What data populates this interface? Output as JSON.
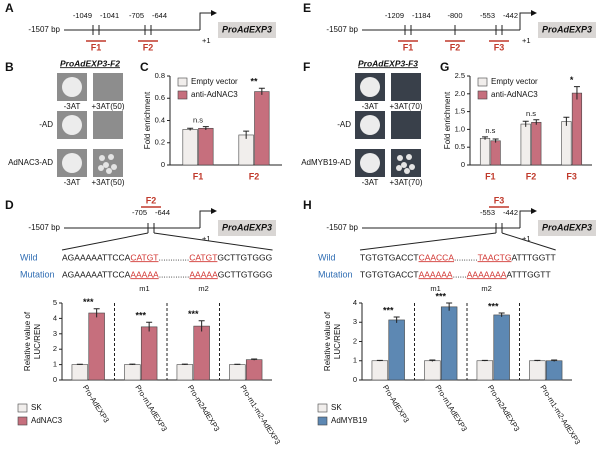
{
  "panels": {
    "A": {
      "label": "A",
      "start": "-1507 bp",
      "sites": [
        "-1049",
        "-1041",
        "-705",
        "-644"
      ],
      "fragments": [
        "F1",
        "F2"
      ],
      "tss": "+1",
      "promoter": "ProAdEXP3"
    },
    "E": {
      "label": "E",
      "start": "-1507 bp",
      "sites": [
        "-1209",
        "-1184",
        "-800",
        "-553",
        "-442"
      ],
      "fragments": [
        "F1",
        "F2",
        "F3"
      ],
      "tss": "+1",
      "promoter": "ProAdEXP3"
    },
    "B": {
      "label": "B",
      "title": "ProAdEXP3-F2",
      "rows": [
        "-AD",
        "AdNAC3-AD"
      ],
      "columns": [
        "-3AT",
        "+3AT(50)"
      ]
    },
    "F": {
      "label": "F",
      "title": "ProAdEXP3-F3",
      "rows": [
        "-AD",
        "AdMYB19-AD"
      ],
      "columns": [
        "-3AT",
        "+3AT(70)"
      ]
    },
    "D": {
      "label": "D",
      "start": "-1507 bp",
      "sites": [
        "-705",
        "-644"
      ],
      "fragments": [
        "F2"
      ],
      "tss": "+1",
      "promoter": "ProAdEXP3",
      "wild_label": "Wild",
      "wild": [
        "AGAAAAATTCCA",
        "CATGT",
        ".............",
        "CATGT",
        "GCTTGTGGG"
      ],
      "mutation_label": "Mutation",
      "mutation": [
        "AGAAAAATTCCA",
        "AAAAA",
        ".............",
        "AAAAA",
        "GCTTGTGGG"
      ],
      "motifs": [
        "m1",
        "m2"
      ]
    },
    "H": {
      "label": "H",
      "start": "-1507 bp",
      "sites": [
        "-553",
        "-442"
      ],
      "fragments": [
        "F3"
      ],
      "tss": "+1",
      "promoter": "ProAdEXP3",
      "wild_label": "Wild",
      "wild": [
        "TGTGTGACCT",
        "CAACCA",
        "..........",
        "TAACTG",
        "ATTTGGTT"
      ],
      "mutation_label": "Mutation",
      "mutation": [
        "TGTGTGACCT",
        "AAAAAA",
        "......",
        "AAAAAAA",
        "ATTTGGTT"
      ],
      "motifs": [
        "m1",
        "m2"
      ]
    }
  },
  "chart_data": [
    {
      "panel": "C",
      "type": "bar",
      "ylabel": [
        "Fold enrichment"
      ],
      "categories": [
        "F1",
        "F2"
      ],
      "series": [
        {
          "name": "Empty vector",
          "color": "#f1eeec",
          "values": [
            0.32,
            0.27
          ],
          "errors": [
            0.01,
            0.035
          ]
        },
        {
          "name": "anti-AdNAC3",
          "color": "#c66f7d",
          "values": [
            0.33,
            0.66
          ],
          "errors": [
            0.015,
            0.03
          ]
        }
      ],
      "annotations": [
        "n.s",
        "**"
      ],
      "ylim": [
        0,
        0.8
      ],
      "yticks": [
        0,
        0.2,
        0.4,
        0.6,
        0.8
      ],
      "legend": "upper left"
    },
    {
      "panel": "G",
      "type": "bar",
      "ylabel": [
        "Fold enrichment"
      ],
      "categories": [
        "F1",
        "F2",
        "F3"
      ],
      "series": [
        {
          "name": "Empty vector",
          "color": "#f1eeec",
          "values": [
            0.75,
            1.15,
            1.22
          ],
          "errors": [
            0.04,
            0.08,
            0.12
          ]
        },
        {
          "name": "anti-AdNAC3",
          "color": "#c66f7d",
          "values": [
            0.68,
            1.2,
            2.02
          ],
          "errors": [
            0.05,
            0.07,
            0.18
          ]
        }
      ],
      "annotations": [
        "n.s",
        "n.s",
        "*"
      ],
      "ylim": [
        0,
        2.5
      ],
      "yticks": [
        0,
        0.5,
        {
          "value": 1,
          "label": "1.0"
        },
        1.5,
        {
          "value": 2,
          "label": "2.0"
        },
        2.5
      ],
      "legend": "upper left"
    },
    {
      "type": "bar",
      "ylabel": [
        "Relative value of",
        "LUC/REN"
      ],
      "categories": [
        "Pro-AdEXP3",
        "Pro-m1AdEXP3",
        "Pro-m2AdEXP3",
        "Pro-m1-m2-AdEXP3"
      ],
      "series": [
        {
          "name": "SK",
          "color": "#f1eeec",
          "values": [
            1,
            1,
            1,
            1
          ],
          "errors": [
            0.02,
            0.03,
            0.03,
            0.02
          ]
        },
        {
          "name": "AdNAC3",
          "color": "#c66f7d",
          "values": [
            4.35,
            3.45,
            3.5,
            1.32
          ],
          "errors": [
            0.28,
            0.3,
            0.35,
            0.04
          ]
        }
      ],
      "annotations": [
        "***",
        "***",
        "***",
        null
      ],
      "ylim": [
        0,
        5
      ],
      "yticks": [
        0,
        1,
        2,
        3,
        4,
        5
      ],
      "legend": "below",
      "separators": true
    },
    {
      "type": "bar",
      "ylabel": [
        "Relative value of",
        "LUC/REN"
      ],
      "categories": [
        "Pro-AdEXP3",
        "Pro-m1AdEXP3",
        "Pro-m2AdEXP3",
        "Pro-m1-m2-AdEXP3"
      ],
      "series": [
        {
          "name": "SK",
          "color": "#f1eeec",
          "values": [
            1,
            1,
            1,
            1
          ],
          "errors": [
            0.02,
            0.04,
            0.02,
            0.02
          ]
        },
        {
          "name": "AdMYB19",
          "color": "#5d88b3",
          "values": [
            3.12,
            3.8,
            3.38,
            1.0
          ],
          "errors": [
            0.15,
            0.2,
            0.1,
            0.04
          ]
        }
      ],
      "annotations": [
        "***",
        "***",
        "***",
        null
      ],
      "ylim": [
        0,
        4
      ],
      "yticks": [
        0,
        1,
        2,
        3,
        4
      ],
      "legend": "below",
      "separators": true
    }
  ]
}
